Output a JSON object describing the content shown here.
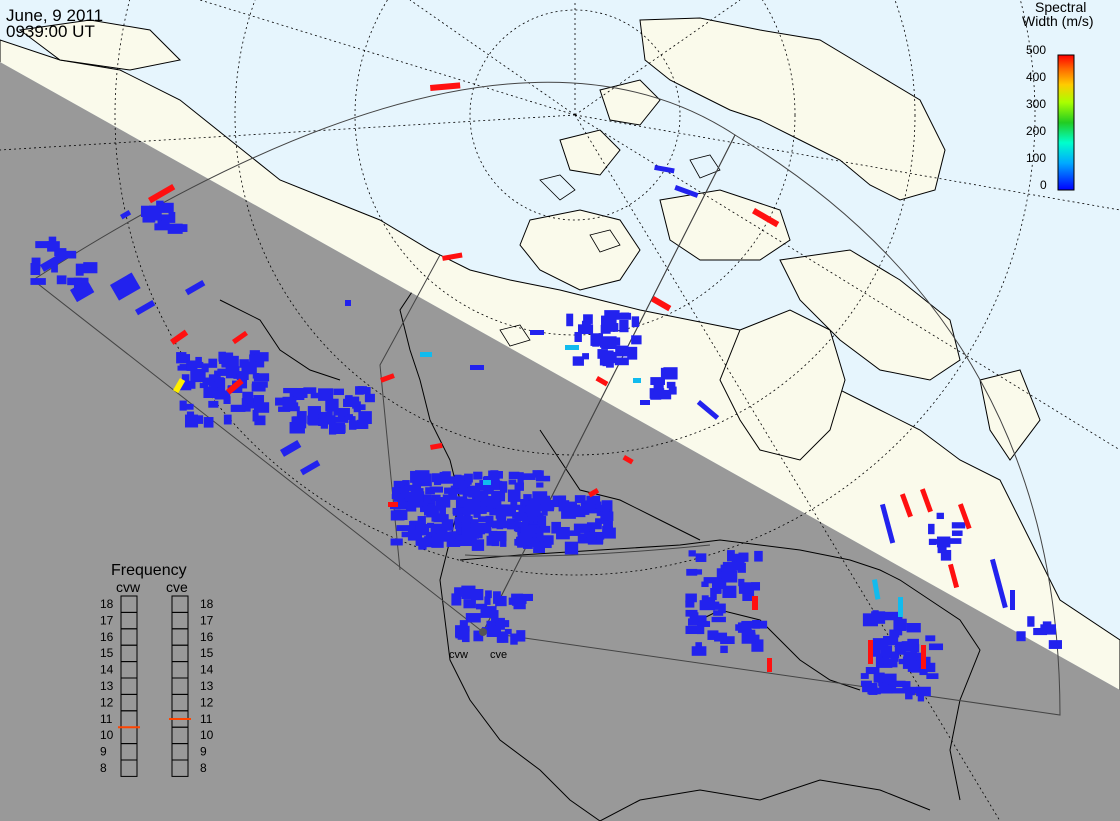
{
  "header": {
    "date": "June, 9 2011",
    "time": "0939:00 UT"
  },
  "colorbar": {
    "title_line1": "Spectral",
    "title_line2": "Width (m/s)",
    "ticks": [
      "500",
      "400",
      "300",
      "200",
      "100",
      "0"
    ]
  },
  "frequency_panel": {
    "title": "Frequency",
    "radars": [
      {
        "name": "cvw",
        "selected_mhz": 10.5
      },
      {
        "name": "cve",
        "selected_mhz": 11
      }
    ],
    "ticks": [
      "18",
      "17",
      "16",
      "15",
      "14",
      "13",
      "12",
      "11",
      "10",
      "9",
      "8"
    ],
    "indicator_color": "#ff4400"
  },
  "radar_sites": [
    "cvw",
    "cve"
  ],
  "colors": {
    "night": "#999999",
    "day_land": "#fafaeb",
    "day_ocean": "#e6f5fd",
    "low": "#2222ee",
    "high": "#ff1010",
    "cyan": "#11bbee",
    "yellow": "#ffee00"
  }
}
